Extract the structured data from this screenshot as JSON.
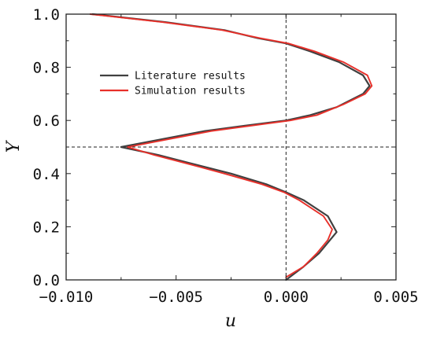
{
  "chart_data": {
    "type": "line",
    "xlabel": "u",
    "ylabel": "Y",
    "xlim": [
      -0.01,
      0.005
    ],
    "ylim": [
      0.0,
      1.0
    ],
    "xticks": [
      -0.01,
      -0.005,
      0.0,
      0.005
    ],
    "xtick_labels": [
      "−0.010",
      "−0.005",
      "0.000",
      "0.005"
    ],
    "yticks": [
      0.0,
      0.2,
      0.4,
      0.6,
      0.8,
      1.0
    ],
    "ytick_labels": [
      "0.0",
      "0.2",
      "0.4",
      "0.6",
      "0.8",
      "1.0"
    ],
    "reference_lines": {
      "x": 0.0,
      "y": 0.5
    },
    "legend_position": "upper-left",
    "series": [
      {
        "name": "Literature results",
        "color": "#404040",
        "points": [
          [
            0.0,
            0.0
          ],
          [
            0.0008,
            0.05
          ],
          [
            0.0015,
            0.1
          ],
          [
            0.002,
            0.15
          ],
          [
            0.0023,
            0.18
          ],
          [
            0.0019,
            0.24
          ],
          [
            0.0008,
            0.3
          ],
          [
            0.0,
            0.33
          ],
          [
            -0.0009,
            0.36
          ],
          [
            -0.0025,
            0.4
          ],
          [
            -0.0044,
            0.44
          ],
          [
            -0.0058,
            0.47
          ],
          [
            -0.0075,
            0.5
          ],
          [
            -0.0056,
            0.53
          ],
          [
            -0.0037,
            0.56
          ],
          [
            -0.0019,
            0.58
          ],
          [
            0.0,
            0.6
          ],
          [
            0.0011,
            0.62
          ],
          [
            0.0023,
            0.65
          ],
          [
            0.0035,
            0.7
          ],
          [
            0.0038,
            0.73
          ],
          [
            0.0035,
            0.77
          ],
          [
            0.0024,
            0.82
          ],
          [
            0.0011,
            0.86
          ],
          [
            0.0,
            0.89
          ],
          [
            -0.0013,
            0.91
          ],
          [
            -0.0028,
            0.94
          ],
          [
            -0.0055,
            0.97
          ],
          [
            -0.0088,
            1.0
          ]
        ]
      },
      {
        "name": "Simulation results",
        "color": "#e8302a",
        "points": [
          [
            0.0,
            0.01
          ],
          [
            0.0008,
            0.05
          ],
          [
            0.0014,
            0.1
          ],
          [
            0.0019,
            0.15
          ],
          [
            0.0021,
            0.19
          ],
          [
            0.0017,
            0.24
          ],
          [
            0.0006,
            0.3
          ],
          [
            -0.0001,
            0.33
          ],
          [
            -0.0011,
            0.36
          ],
          [
            -0.0028,
            0.4
          ],
          [
            -0.0046,
            0.44
          ],
          [
            -0.006,
            0.47
          ],
          [
            -0.0072,
            0.5
          ],
          [
            -0.0053,
            0.53
          ],
          [
            -0.0034,
            0.56
          ],
          [
            -0.0016,
            0.58
          ],
          [
            0.0002,
            0.6
          ],
          [
            0.0014,
            0.62
          ],
          [
            0.0026,
            0.66
          ],
          [
            0.0036,
            0.7
          ],
          [
            0.0039,
            0.73
          ],
          [
            0.0037,
            0.77
          ],
          [
            0.0026,
            0.82
          ],
          [
            0.0013,
            0.86
          ],
          [
            0.0001,
            0.89
          ],
          [
            -0.0012,
            0.91
          ],
          [
            -0.0029,
            0.94
          ],
          [
            -0.0056,
            0.97
          ],
          [
            -0.0089,
            1.0
          ]
        ]
      }
    ]
  }
}
